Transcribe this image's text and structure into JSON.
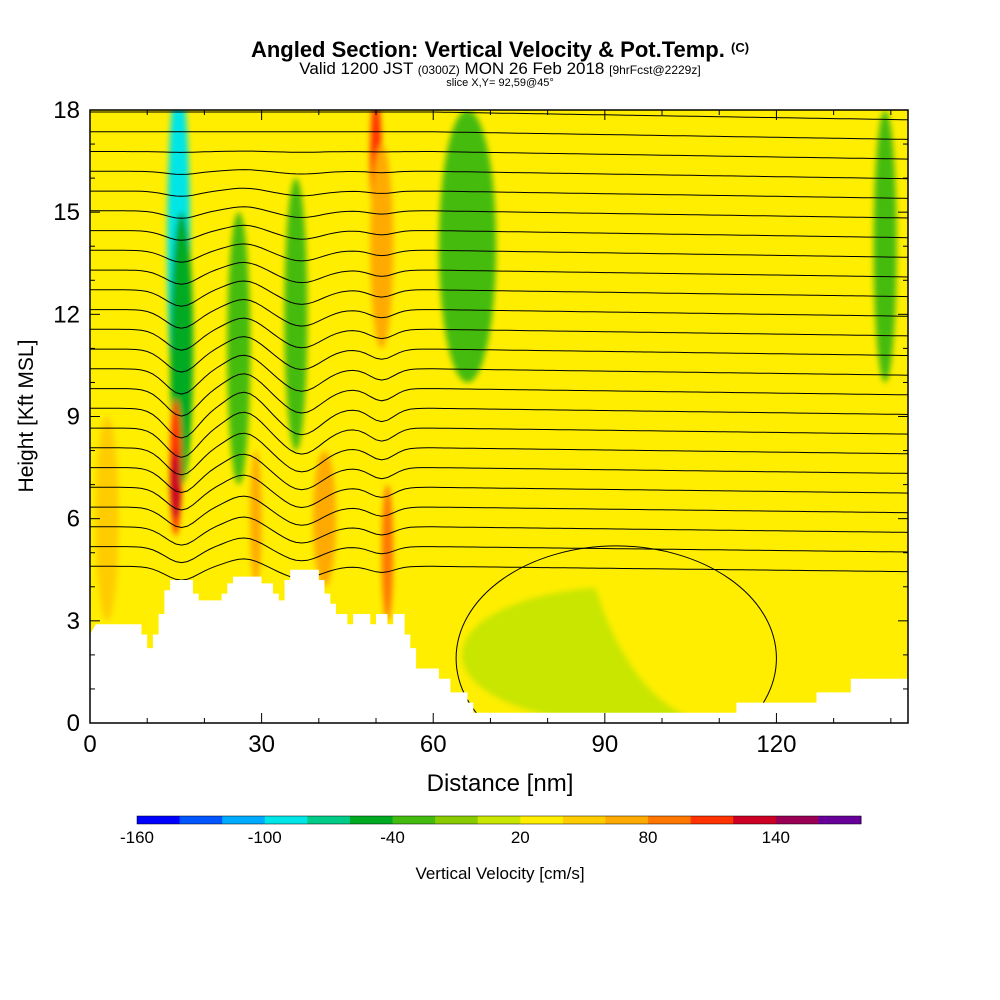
{
  "chart_data": {
    "type": "heatmap",
    "title": "Angled Section: Vertical Velocity & Pot.Temp.",
    "title_tag": "(C)",
    "subtitle": {
      "valid_prefix": "Valid 1200 JST",
      "utc": "(0300Z)",
      "date": "MON 26 Feb 2018",
      "forecast": "[9hrFcst@2229z]"
    },
    "slice_label": "slice X,Y= 92,59@45°",
    "xlabel": "Distance [nm]",
    "ylabel": "Height [Kft MSL]",
    "xlim": [
      0,
      143
    ],
    "ylim": [
      0,
      18
    ],
    "xticks": [
      "0",
      "30",
      "60",
      "90",
      "120"
    ],
    "yticks": [
      "0",
      "3",
      "6",
      "9",
      "12",
      "15",
      "18"
    ],
    "terrain_kft": [
      [
        0,
        2.6
      ],
      [
        1,
        2.9
      ],
      [
        9,
        2.9
      ],
      [
        9,
        2.6
      ],
      [
        10,
        2.6
      ],
      [
        10,
        2.2
      ],
      [
        11,
        2.2
      ],
      [
        11,
        2.6
      ],
      [
        12,
        2.6
      ],
      [
        12,
        3.2
      ],
      [
        13,
        3.2
      ],
      [
        13,
        3.9
      ],
      [
        14,
        3.9
      ],
      [
        14,
        4.2
      ],
      [
        18,
        4.2
      ],
      [
        18,
        3.8
      ],
      [
        19,
        3.8
      ],
      [
        19,
        3.6
      ],
      [
        23,
        3.6
      ],
      [
        23,
        3.8
      ],
      [
        24,
        3.8
      ],
      [
        24,
        4.1
      ],
      [
        25,
        4.1
      ],
      [
        25,
        4.3
      ],
      [
        30,
        4.3
      ],
      [
        30,
        4.1
      ],
      [
        32,
        4.1
      ],
      [
        32,
        3.8
      ],
      [
        33,
        3.8
      ],
      [
        33,
        3.6
      ],
      [
        34,
        3.6
      ],
      [
        34,
        4.2
      ],
      [
        35,
        4.2
      ],
      [
        35,
        4.5
      ],
      [
        40,
        4.5
      ],
      [
        40,
        4.2
      ],
      [
        41,
        4.2
      ],
      [
        41,
        3.8
      ],
      [
        42,
        3.8
      ],
      [
        42,
        3.5
      ],
      [
        43,
        3.5
      ],
      [
        43,
        3.2
      ],
      [
        45,
        3.2
      ],
      [
        45,
        2.9
      ],
      [
        46,
        2.9
      ],
      [
        46,
        3.2
      ],
      [
        49,
        3.2
      ],
      [
        49,
        2.9
      ],
      [
        50,
        2.9
      ],
      [
        50,
        3.2
      ],
      [
        52,
        3.2
      ],
      [
        52,
        2.9
      ],
      [
        53,
        2.9
      ],
      [
        53,
        3.2
      ],
      [
        55,
        3.2
      ],
      [
        55,
        2.6
      ],
      [
        56,
        2.6
      ],
      [
        56,
        2.2
      ],
      [
        57,
        2.2
      ],
      [
        57,
        1.6
      ],
      [
        61,
        1.6
      ],
      [
        61,
        1.3
      ],
      [
        63,
        1.3
      ],
      [
        63,
        0.9
      ],
      [
        66,
        0.9
      ],
      [
        66,
        0.6
      ],
      [
        67,
        0.6
      ],
      [
        67,
        0.3
      ],
      [
        113,
        0.3
      ],
      [
        113,
        0.6
      ],
      [
        119,
        0.6
      ],
      [
        127,
        0.6
      ],
      [
        127,
        0.9
      ],
      [
        133,
        0.9
      ],
      [
        133,
        1.3
      ],
      [
        143,
        1.3
      ]
    ],
    "vertical_velocity_features": [
      {
        "x": 15.5,
        "y": 14,
        "rx": 2,
        "ry": 5,
        "value": -100
      },
      {
        "x": 16,
        "y": 11,
        "rx": 2,
        "ry": 4,
        "value": -60
      },
      {
        "x": 26,
        "y": 11,
        "rx": 2,
        "ry": 4,
        "value": -40
      },
      {
        "x": 36,
        "y": 12,
        "rx": 2,
        "ry": 4,
        "value": -40
      },
      {
        "x": 66,
        "y": 14,
        "rx": 5,
        "ry": 4,
        "value": -40
      },
      {
        "x": 139,
        "y": 14,
        "rx": 2,
        "ry": 4,
        "value": -40
      },
      {
        "x": 15,
        "y": 7.5,
        "rx": 1,
        "ry": 2,
        "value": 100
      },
      {
        "x": 15,
        "y": 7,
        "rx": 1,
        "ry": 1,
        "value": 120
      },
      {
        "x": 50,
        "y": 16.5,
        "rx": 1,
        "ry": 2,
        "value": 100
      },
      {
        "x": 51,
        "y": 14,
        "rx": 2,
        "ry": 3,
        "value": 60
      },
      {
        "x": 41,
        "y": 6,
        "rx": 2,
        "ry": 2,
        "value": 60
      },
      {
        "x": 52,
        "y": 5,
        "rx": 1,
        "ry": 2,
        "value": 80
      },
      {
        "x": 3,
        "y": 6,
        "rx": 2,
        "ry": 3,
        "value": 40
      },
      {
        "x": 29,
        "y": 6,
        "rx": 1,
        "ry": 2,
        "value": 60
      },
      {
        "x": 93,
        "y": 2,
        "rx": 28,
        "ry": 2,
        "value": 0
      },
      {
        "x": 110,
        "y": 8,
        "rx": 25,
        "ry": 8,
        "value": 20
      }
    ],
    "colorbar": {
      "label": "Vertical Velocity [cm/s]",
      "tick_labels": [
        "-160",
        "-100",
        "-40",
        "20",
        "80",
        "140"
      ],
      "colors": [
        "#0000ff",
        "#0055ff",
        "#00aaff",
        "#00e6e6",
        "#00cc88",
        "#00aa22",
        "#44bb11",
        "#88cc00",
        "#c8e600",
        "#ffee00",
        "#ffcc00",
        "#ffaa00",
        "#ff7700",
        "#ff3300",
        "#cc0022",
        "#990055",
        "#660099"
      ]
    }
  }
}
